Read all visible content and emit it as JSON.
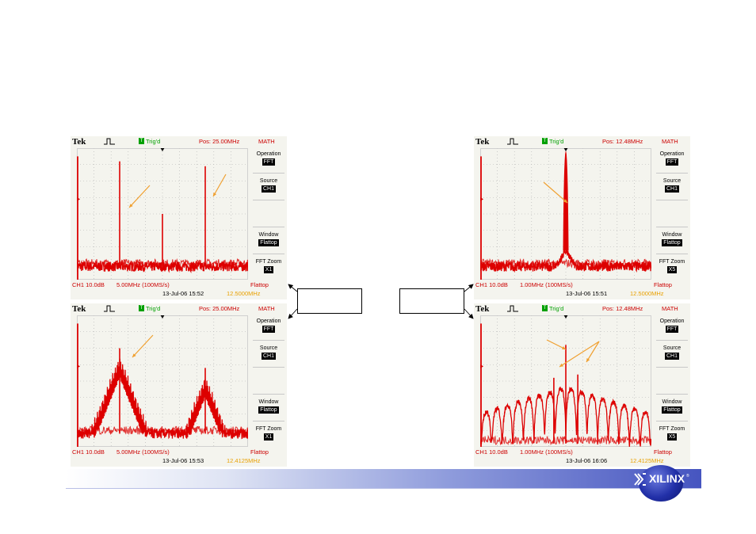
{
  "colors": {
    "trace": "#dd0000",
    "arrow": "#f0a030",
    "grid": "#b0b0b0",
    "menu_value_bg": "#000000",
    "trig": "#00a000",
    "freq": "#e8a000"
  },
  "footer": {
    "logo": "XILINX",
    "tm": "®"
  },
  "chart_data": [
    {
      "type": "line",
      "header": {
        "brand": "Tek",
        "trig_box": "T",
        "trig": "Trig'd",
        "pos": "Pos: 25.00MHz",
        "mode": "MATH"
      },
      "menu": [
        {
          "label": "Operation",
          "value": "FFT"
        },
        {
          "label": "Source",
          "value": "CH1"
        },
        {
          "label": "Window",
          "value": "Flattop"
        },
        {
          "label": "FFT Zoom",
          "value": "X1"
        }
      ],
      "scale": {
        "ch": "CH1 10.0dB",
        "hdiv": "5.00MHz (100MS/s)",
        "window": "Flattop",
        "date": "13-Jul-06 15:52",
        "freq": "12.5000MHz"
      },
      "x_range_mhz": [
        0,
        50
      ],
      "noise_floor_db": -72,
      "peaks": [
        {
          "x": 12.5,
          "db": -8
        },
        {
          "x": 37.5,
          "db": -11
        },
        {
          "x": 25.0,
          "db": -40
        }
      ],
      "skirt": null
    },
    {
      "type": "line",
      "header": {
        "brand": "Tek",
        "trig_box": "T",
        "trig": "Trig'd",
        "pos": "Pos: 12.48MHz",
        "mode": "MATH"
      },
      "menu": [
        {
          "label": "Operation",
          "value": "FFT"
        },
        {
          "label": "Source",
          "value": "CH1"
        },
        {
          "label": "Window",
          "value": "Flattop"
        },
        {
          "label": "FFT Zoom",
          "value": "X5"
        }
      ],
      "scale": {
        "ch": "CH1 10.0dB",
        "hdiv": "1.00MHz (100MS/s)",
        "window": "Flattop",
        "date": "13-Jul-06 15:51",
        "freq": "12.5000MHz"
      },
      "x_range_mhz": [
        7.5,
        17.5
      ],
      "noise_floor_db": -72,
      "peaks": [
        {
          "x": 12.5,
          "db": -2
        }
      ],
      "skirt": {
        "kind": "narrow",
        "width_mhz": 0.3
      }
    },
    {
      "type": "line",
      "header": {
        "brand": "Tek",
        "trig_box": "T",
        "trig": "Trig'd",
        "pos": "Pos: 25.00MHz",
        "mode": "MATH"
      },
      "menu": [
        {
          "label": "Operation",
          "value": "FFT"
        },
        {
          "label": "Source",
          "value": "CH1"
        },
        {
          "label": "Window",
          "value": "Flattop"
        },
        {
          "label": "FFT Zoom",
          "value": "X1"
        }
      ],
      "scale": {
        "ch": "CH1 10.0dB",
        "hdiv": "5.00MHz (100MS/s)",
        "window": "Flattop",
        "date": "13-Jul-06 15:53",
        "freq": "12.4125MHz"
      },
      "x_range_mhz": [
        0,
        50
      ],
      "noise_floor_db": -72,
      "peaks": [
        {
          "x": 12.5,
          "db": -20
        },
        {
          "x": 37.5,
          "db": -32
        }
      ],
      "skirt": {
        "kind": "wide",
        "width_mhz": 6.5
      }
    },
    {
      "type": "line",
      "header": {
        "brand": "Tek",
        "trig_box": "T",
        "trig": "Trig'd",
        "pos": "Pos: 12.48MHz",
        "mode": "MATH"
      },
      "menu": [
        {
          "label": "Operation",
          "value": "FFT"
        },
        {
          "label": "Source",
          "value": "CH1"
        },
        {
          "label": "Window",
          "value": "Flattop"
        },
        {
          "label": "FFT Zoom",
          "value": "X5"
        }
      ],
      "scale": {
        "ch": "CH1 10.0dB",
        "hdiv": "1.00MHz (100MS/s)",
        "window": "Flattop",
        "date": "13-Jul-06 16:06",
        "freq": "12.4125MHz"
      },
      "x_range_mhz": [
        7.5,
        17.5
      ],
      "noise_floor_db": -78,
      "peaks": [
        {
          "x": 12.5,
          "db": -18
        },
        {
          "x": 11.8,
          "db": -38
        },
        {
          "x": 13.2,
          "db": -36
        }
      ],
      "skirt": {
        "kind": "lobes",
        "spacing_mhz": 0.62
      }
    }
  ]
}
